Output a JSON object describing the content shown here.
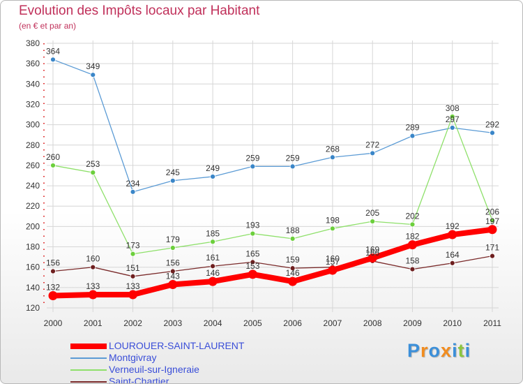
{
  "chart_data": {
    "type": "line",
    "title": "Evolution des Impôts locaux par Habitant",
    "subtitle": "(en € et par an)",
    "xlabel": "",
    "ylabel": "",
    "ylim": [
      120,
      380
    ],
    "yticks": [
      120,
      140,
      160,
      180,
      200,
      220,
      240,
      260,
      280,
      300,
      320,
      340,
      360,
      380
    ],
    "grid": true,
    "categories": [
      "2000",
      "2001",
      "2002",
      "2003",
      "2004",
      "2005",
      "2006",
      "2007",
      "2008",
      "2009",
      "2010",
      "2011"
    ],
    "series": [
      {
        "name": "Montgivray",
        "color": "#5b9bd5",
        "dot": "#3a86c8",
        "values": [
          364,
          349,
          234,
          245,
          249,
          259,
          259,
          268,
          272,
          289,
          297,
          292
        ]
      },
      {
        "name": "Verneuil-sur-Igneraie",
        "color": "#8ee06a",
        "dot": "#6ccf3c",
        "values": [
          260,
          253,
          173,
          179,
          185,
          193,
          188,
          198,
          205,
          202,
          308,
          206
        ]
      },
      {
        "name": "Saint-Chartier",
        "color": "#7a2a2a",
        "dot": "#6e1f1f",
        "values": [
          156,
          160,
          151,
          156,
          161,
          165,
          159,
          160,
          166,
          158,
          164,
          171
        ]
      },
      {
        "name": "LOUROUER-SAINT-LAURENT",
        "color": "#ff0000",
        "dot": "#ff0000",
        "values": [
          132,
          133,
          133,
          143,
          146,
          153,
          146,
          157,
          169,
          182,
          192,
          197
        ]
      }
    ]
  },
  "legend": [
    {
      "label": "LOUROUER-SAINT-LAURENT",
      "color": "#ff0000"
    },
    {
      "label": "Montgivray",
      "color": "#5b9bd5"
    },
    {
      "label": "Verneuil-sur-Igneraie",
      "color": "#8ee06a"
    },
    {
      "label": "Saint-Chartier",
      "color": "#7a2a2a"
    }
  ],
  "logo": {
    "text": "Proxiti",
    "letters": [
      "P",
      "r",
      "o",
      "x",
      "i",
      "t",
      "i"
    ],
    "colors": [
      "#3b8fd9",
      "#f28c1e",
      "#3b8fd9",
      "#f28c1e",
      "#3b8fd9",
      "#8cc63f",
      "#3b8fd9"
    ]
  }
}
